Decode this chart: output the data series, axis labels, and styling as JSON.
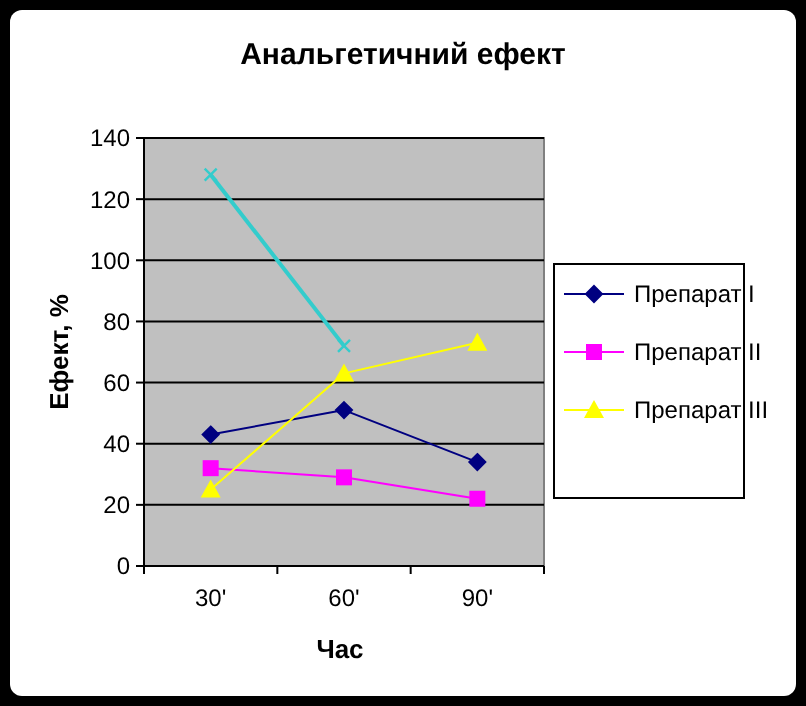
{
  "chart_data": {
    "type": "line",
    "title": "Анальгетичний ефект",
    "xlabel": "Час",
    "ylabel": "Ефект, %",
    "categories": [
      "30'",
      "60'",
      "90'"
    ],
    "series": [
      {
        "name": "Препарат I",
        "color": "#000080",
        "marker": "diamond",
        "values": [
          43,
          51,
          34
        ]
      },
      {
        "name": "Препарат II",
        "color": "#ff00ff",
        "marker": "square",
        "values": [
          32,
          29,
          22
        ]
      },
      {
        "name": "Препарат III",
        "color": "#ffff00",
        "marker": "triangle",
        "values": [
          25,
          63,
          73
        ]
      },
      {
        "color": "#33cccc",
        "marker": "cross",
        "values": [
          128,
          72,
          null
        ]
      }
    ],
    "ylim": [
      0,
      140
    ],
    "yticks": [
      0,
      20,
      40,
      60,
      80,
      100,
      120,
      140
    ],
    "grid": "y",
    "legend": "right"
  }
}
